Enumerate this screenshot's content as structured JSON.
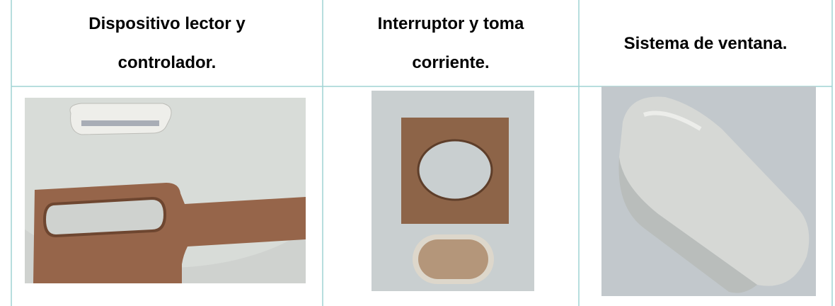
{
  "table": {
    "header": [
      "Dispositivo lector y controlador.",
      "Interruptor y toma corriente.",
      "Sistema de ventana."
    ]
  }
}
